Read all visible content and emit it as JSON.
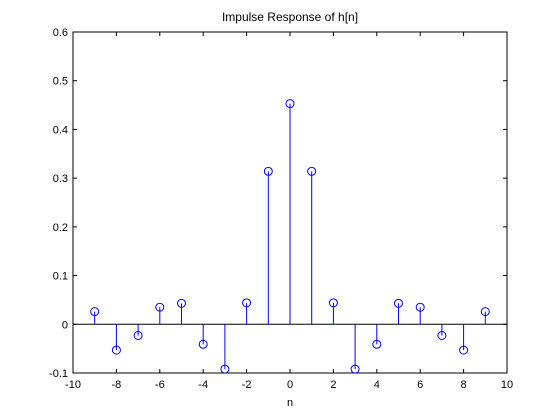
{
  "chart_data": {
    "type": "stem",
    "title": "Impulse Response of h[n]",
    "xlabel": "n",
    "ylabel": "",
    "xlim": [
      -10,
      10
    ],
    "ylim": [
      -0.1,
      0.6
    ],
    "x_ticks": [
      "-10",
      "-8",
      "-6",
      "-4",
      "-2",
      "0",
      "2",
      "4",
      "6",
      "8",
      "10"
    ],
    "y_ticks": [
      "-0.1",
      "0",
      "0.1",
      "0.2",
      "0.3",
      "0.4",
      "0.5",
      "0.6"
    ],
    "grid": false,
    "stem_color": "#0000ff",
    "x": [
      -9,
      -8,
      -7,
      -6,
      -5,
      -4,
      -3,
      -2,
      -1,
      0,
      1,
      2,
      3,
      4,
      5,
      6,
      7,
      8,
      9
    ],
    "y": [
      0.026,
      -0.053,
      -0.023,
      0.035,
      0.043,
      -0.041,
      -0.092,
      0.044,
      0.314,
      0.453,
      0.314,
      0.044,
      -0.092,
      -0.041,
      0.043,
      0.035,
      -0.023,
      -0.053,
      0.026
    ]
  }
}
